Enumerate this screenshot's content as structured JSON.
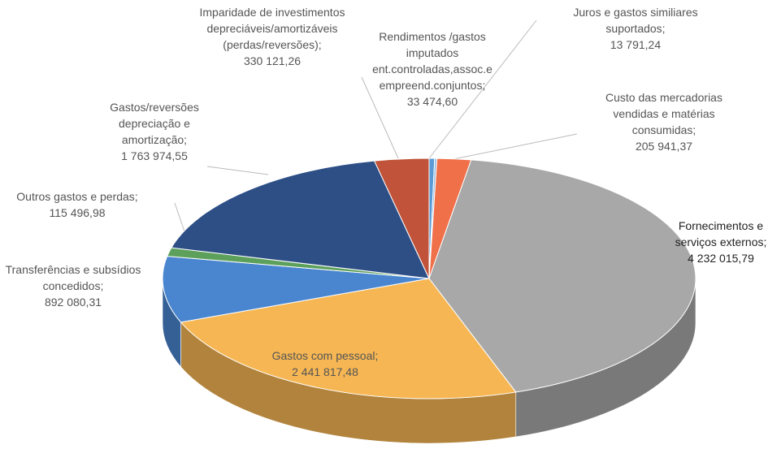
{
  "chart_data": {
    "type": "pie3d",
    "categories": [
      "Rendimentos /gastos imputados ent.controladas,assoc.e empreend.conjuntos;",
      "Juros e gastos similiares suportados;",
      "Custo das mercadorias vendidas e matérias consumidas;",
      "Fornecimentos e serviços externos;",
      "Gastos com pessoal;",
      "Transferências e subsídios concedidos;",
      "Outros gastos e perdas;",
      "Gastos/reversões depreciação e amortização;",
      "Imparidade de investimentos depreciáveis/amortizáveis (perdas/reversões);"
    ],
    "values": [
      33474.6,
      13791.24,
      205941.37,
      4232015.79,
      2441817.48,
      892080.31,
      115496.98,
      1763974.55,
      330121.26
    ],
    "value_labels": [
      "33 474,60",
      "13 791,24",
      "205 941,37",
      "4 232 015,79",
      "2 441 817,48",
      "892 080,31",
      "115 496,98",
      "1 763 974,55",
      "330 121,26"
    ],
    "colors": [
      "#5b9bd5",
      "#8fb8e0",
      "#f0704a",
      "#a8a8a8",
      "#f6b653",
      "#4a86d0",
      "#5ca05c",
      "#2d4f86",
      "#c0533a"
    ]
  }
}
